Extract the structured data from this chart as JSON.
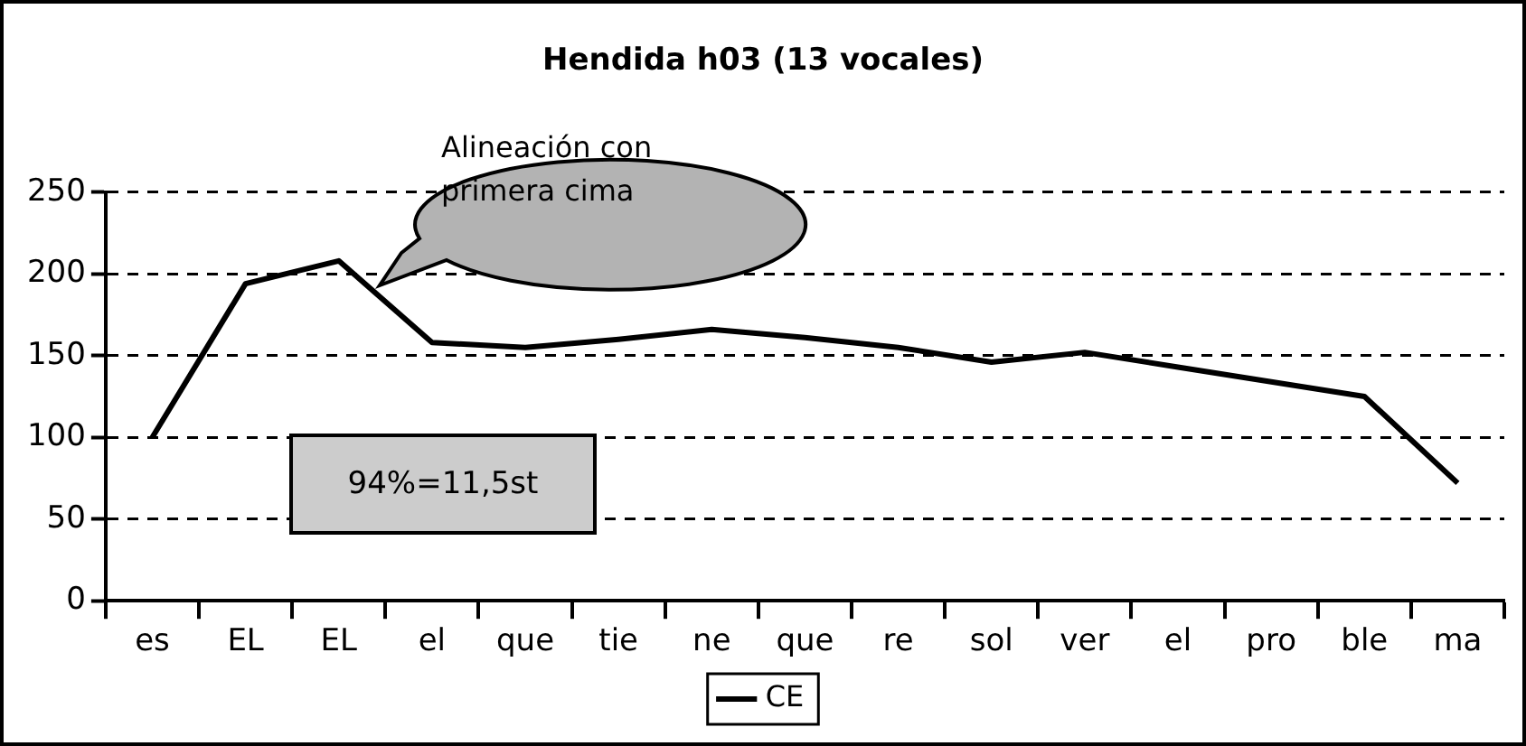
{
  "chart_data": {
    "type": "line",
    "title": "Hendida h03 (13 vocales)",
    "categories": [
      "es",
      "EL",
      "EL",
      "el",
      "que",
      "tie",
      "ne",
      "que",
      "re",
      "sol",
      "ver",
      "el",
      "pro",
      "ble",
      "ma"
    ],
    "series": [
      {
        "name": "CE",
        "color": "#000000",
        "values": [
          100,
          194,
          208,
          158,
          155,
          160,
          166,
          161,
          155,
          146,
          152,
          143,
          134,
          125,
          72
        ]
      }
    ],
    "ylim": [
      0,
      250
    ],
    "yticks": [
      0,
      50,
      100,
      150,
      200,
      250
    ],
    "grid": "y",
    "legend": "bottom",
    "marker": "none",
    "line_style": "solid",
    "annotations": [
      "Alineación con primera cima",
      "94%=11,5st"
    ]
  }
}
